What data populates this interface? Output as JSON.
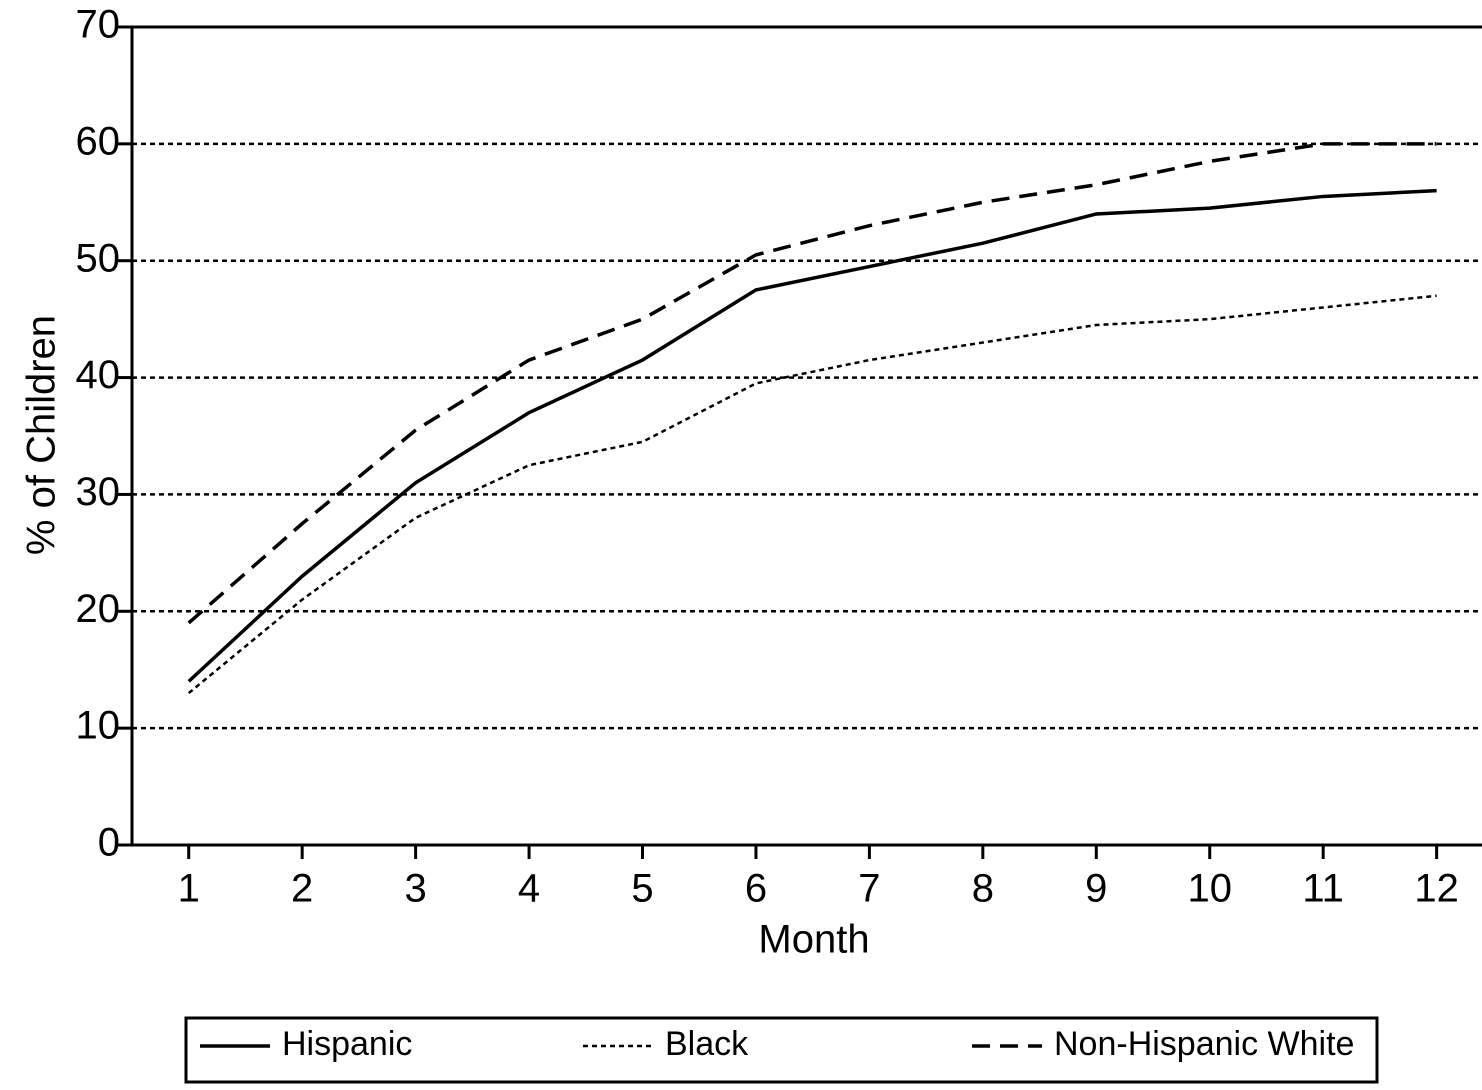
{
  "chart_data": {
    "type": "line",
    "x_label": "Month",
    "y_label": "% of Children",
    "x": [
      1,
      2,
      3,
      4,
      5,
      6,
      7,
      8,
      9,
      10,
      11,
      12
    ],
    "xlim": [
      0.5,
      12.4
    ],
    "xticks": [
      1,
      2,
      3,
      4,
      5,
      6,
      7,
      8,
      9,
      10,
      11,
      12
    ],
    "ylim": [
      0,
      70
    ],
    "yticks": [
      0,
      10,
      20,
      30,
      40,
      50,
      60,
      70
    ],
    "grid": true,
    "legend": "bottom",
    "series": [
      {
        "name": "Hispanic",
        "color": "#000000",
        "style": "solid",
        "values": [
          14,
          23,
          31,
          37,
          41.5,
          47.5,
          49.5,
          51.5,
          54,
          54.5,
          55.5,
          56
        ]
      },
      {
        "name": "Black",
        "color": "#000000",
        "style": "dotted",
        "values": [
          13,
          21,
          28,
          32.5,
          34.5,
          39.5,
          41.5,
          43,
          44.5,
          45,
          46,
          47
        ]
      },
      {
        "name": "Non-Hispanic White",
        "color": "#000000",
        "style": "dashed",
        "values": [
          19,
          27.5,
          35.5,
          41.5,
          45,
          50.5,
          53,
          55,
          56.5,
          58.5,
          60,
          60
        ]
      }
    ]
  }
}
